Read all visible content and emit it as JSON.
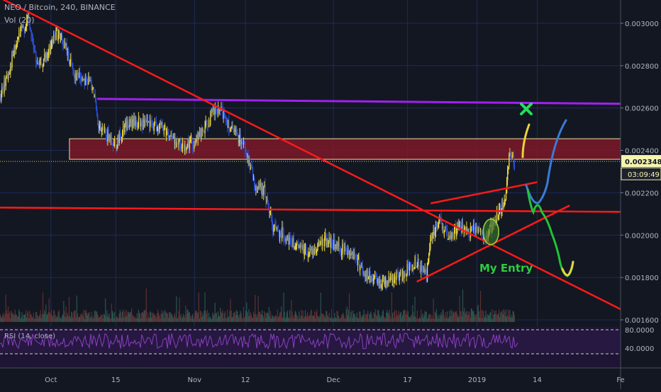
{
  "header": {
    "symbol_line": "NEO / Bitcoin, 240, BINANCE",
    "volume_label": "Vol (20)"
  },
  "rsi": {
    "label": "RSI (14, close)",
    "axis_labels": [
      "80.0000",
      "40.0000"
    ],
    "levels": [
      80,
      40
    ]
  },
  "price_badge": {
    "value": "0.002348",
    "countdown": "03:09:49",
    "color": "#f5f5b0"
  },
  "annotation": {
    "text": "My Entry",
    "color": "#2ecc40"
  },
  "colors": {
    "background": "#131722",
    "grid": "#1f2a58",
    "up": "#e8d43a",
    "down": "#2b4fd6",
    "trendline": "#ff1a1a",
    "resistance": "#a020f0",
    "zone": "#8b1a2a",
    "forecast_up": "#3a7bd5",
    "forecast_down": "#22c33a",
    "forecast_alt": "#e8d43a",
    "target_mark": "#22e05a",
    "rsi_line": "#8a3fbf"
  },
  "icons": {
    "target": "x-mark-icon"
  },
  "chart_data": {
    "type": "line",
    "title": "NEO / Bitcoin, 240, BINANCE",
    "ylim": [
      0.00158,
      0.00311
    ],
    "yticks": [
      "0.003000",
      "0.002800",
      "0.002600",
      "0.002400",
      "0.002200",
      "0.002000",
      "0.001800",
      "0.001600"
    ],
    "ytick_values": [
      0.003,
      0.0028,
      0.0026,
      0.0024,
      0.0022,
      0.002,
      0.0018,
      0.0016
    ],
    "xticks": [
      "Oct",
      "15",
      "Nov",
      "12",
      "Dec",
      "17",
      "2019",
      "14",
      "Fe"
    ],
    "xtick_dates": [
      "2018-10-01",
      "2018-10-15",
      "2018-11-01",
      "2018-11-12",
      "2018-12-01",
      "2018-12-17",
      "2019-01-01",
      "2019-01-14",
      "2019-02-01"
    ],
    "xlim": [
      "2018-09-20",
      "2019-02-01"
    ],
    "last_price": 0.002348,
    "series": [
      {
        "values": [
          [
            "2018-09-20",
            0.00265
          ],
          [
            "2018-09-22",
            0.00279
          ],
          [
            "2018-09-24",
            0.00294
          ],
          [
            "2018-09-26",
            0.00302
          ],
          [
            "2018-09-28",
            0.00279
          ],
          [
            "2018-09-30",
            0.00284
          ],
          [
            "2018-10-02",
            0.00296
          ],
          [
            "2018-10-04",
            0.00289
          ],
          [
            "2018-10-06",
            0.00276
          ],
          [
            "2018-10-08",
            0.00274
          ],
          [
            "2018-10-10",
            0.00271
          ],
          [
            "2018-10-11",
            0.00251
          ],
          [
            "2018-10-13",
            0.00247
          ],
          [
            "2018-10-15",
            0.00243
          ],
          [
            "2018-10-17",
            0.00252
          ],
          [
            "2018-10-19",
            0.00253
          ],
          [
            "2018-10-22",
            0.00252
          ],
          [
            "2018-10-25",
            0.00251
          ],
          [
            "2018-10-27",
            0.00246
          ],
          [
            "2018-10-29",
            0.00242
          ],
          [
            "2018-11-01",
            0.00244
          ],
          [
            "2018-11-03",
            0.0025
          ],
          [
            "2018-11-05",
            0.00258
          ],
          [
            "2018-11-07",
            0.00258
          ],
          [
            "2018-11-09",
            0.00249
          ],
          [
            "2018-11-11",
            0.00245
          ],
          [
            "2018-11-12",
            0.0024
          ],
          [
            "2018-11-14",
            0.00223
          ],
          [
            "2018-11-16",
            0.00221
          ],
          [
            "2018-11-18",
            0.00203
          ],
          [
            "2018-11-20",
            0.00201
          ],
          [
            "2018-11-23",
            0.00194
          ],
          [
            "2018-11-26",
            0.00192
          ],
          [
            "2018-11-29",
            0.00198
          ],
          [
            "2018-12-02",
            0.00194
          ],
          [
            "2018-12-05",
            0.00192
          ],
          [
            "2018-12-08",
            0.00181
          ],
          [
            "2018-12-10",
            0.00178
          ],
          [
            "2018-12-13",
            0.00179
          ],
          [
            "2018-12-15",
            0.0018
          ],
          [
            "2018-12-17",
            0.00184
          ],
          [
            "2018-12-19",
            0.00188
          ],
          [
            "2018-12-21",
            0.00181
          ],
          [
            "2018-12-22",
            0.002
          ],
          [
            "2018-12-24",
            0.00207
          ],
          [
            "2018-12-26",
            0.00197
          ],
          [
            "2018-12-28",
            0.00205
          ],
          [
            "2018-12-30",
            0.002
          ],
          [
            "2019-01-01",
            0.00204
          ],
          [
            "2019-01-03",
            0.00198
          ],
          [
            "2019-01-04",
            0.00204
          ],
          [
            "2019-01-06",
            0.00212
          ],
          [
            "2019-01-07",
            0.00218
          ],
          [
            "2019-01-08",
            0.0024
          ],
          [
            "2019-01-09",
            0.00235
          ]
        ]
      }
    ],
    "horizontal_lines": [
      {
        "y_start": 0.002643,
        "y_end": 0.00262,
        "x_start": "2018-10-11",
        "x_end": "2019-02-01",
        "color": "#a020f0"
      },
      {
        "y_start": 0.00213,
        "y_end": 0.00211,
        "x_start": "2018-09-20",
        "x_end": "2019-02-01",
        "color": "#ff1a1a"
      }
    ],
    "trendlines": [
      {
        "x1": "2018-09-20",
        "y1": 0.00312,
        "x2": "2019-02-01",
        "y2": 0.00165
      },
      {
        "x1": "2018-12-22",
        "y1": 0.00215,
        "x2": "2019-01-14",
        "y2": 0.00225
      },
      {
        "x1": "2018-12-19",
        "y1": 0.00178,
        "x2": "2019-01-21",
        "y2": 0.00214
      }
    ],
    "zone": {
      "y_low": 0.002358,
      "y_high": 0.002455,
      "x_start": "2018-10-05",
      "x_end": "2019-02-01"
    },
    "entry_point": {
      "x": "2019-01-04",
      "y": 0.002015
    }
  }
}
